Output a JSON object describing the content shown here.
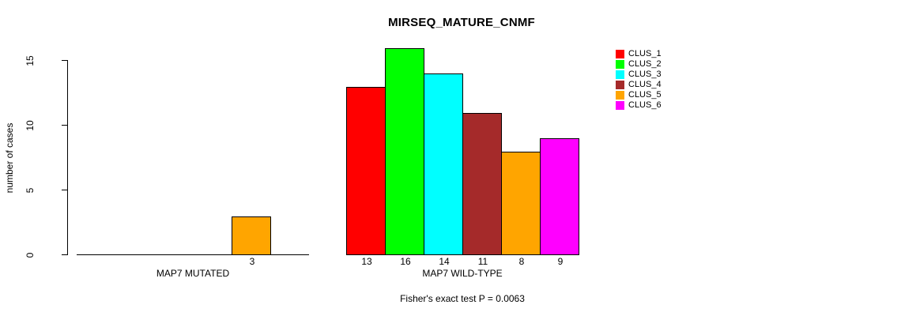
{
  "chart_data": {
    "type": "bar",
    "title": "MIRSEQ_MATURE_CNMF",
    "ylabel": "number of cases",
    "yticks": [
      0,
      5,
      10,
      15
    ],
    "ylim": [
      0,
      16
    ],
    "grid": false,
    "legend_position": "top-right",
    "axis_color": "#000000",
    "bar_border_color": "#000000",
    "series": [
      {
        "name": "CLUS_1",
        "color": "#FF0000"
      },
      {
        "name": "CLUS_2",
        "color": "#00FF00"
      },
      {
        "name": "CLUS_3",
        "color": "#00FFFF"
      },
      {
        "name": "CLUS_4",
        "color": "#A52A2A"
      },
      {
        "name": "CLUS_5",
        "color": "#FFA500"
      },
      {
        "name": "CLUS_6",
        "color": "#FF00FF"
      }
    ],
    "groups": [
      {
        "label": "MAP7 MUTATED",
        "values": [
          0,
          0,
          0,
          0,
          3,
          0
        ]
      },
      {
        "label": "MAP7 WILD-TYPE",
        "values": [
          13,
          16,
          14,
          11,
          8,
          9
        ]
      }
    ],
    "annotation": "Fisher's exact test P = 0.0063"
  }
}
